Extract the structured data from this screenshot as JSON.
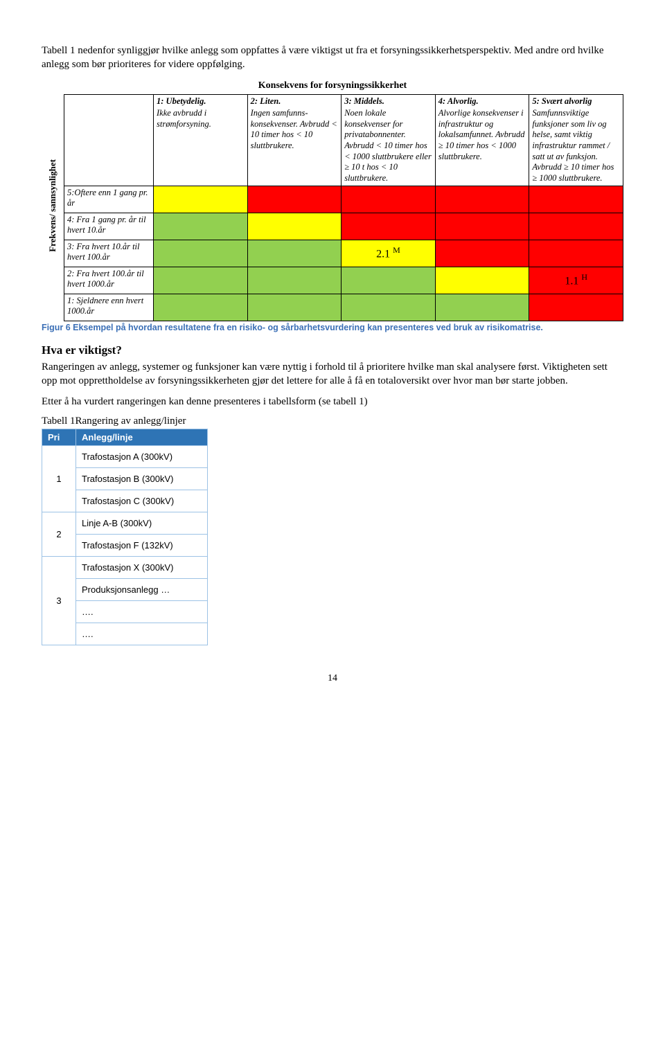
{
  "intro": "Tabell 1 nedenfor synliggjør hvilke anlegg som oppfattes å være viktigst ut fra et forsyningssikkerhetsperspektiv. Med andre ord hvilke anlegg som bør prioriteres for videre oppfølging.",
  "risk": {
    "title": "Konsekvens for forsyningssikkerhet",
    "y_axis_label": "Frekvens/ sannsynlighet",
    "columns": [
      {
        "title": "1: Ubetydelig.",
        "desc": "Ikke avbrudd i strømforsyning."
      },
      {
        "title": "2: Liten.",
        "desc": "Ingen samfunns-konsekvenser. Avbrudd < 10 timer hos < 10 sluttbrukere."
      },
      {
        "title": "3: Middels.",
        "desc": "Noen lokale konsekvenser for privatabonnenter. Avbrudd < 10 timer hos < 1000 sluttbrukere eller ≥ 10 t hos < 10 sluttbrukere."
      },
      {
        "title": "4: Alvorlig.",
        "desc": "Alvorlige konsekvenser i infrastruktur og lokalsamfunnet. Avbrudd ≥ 10 timer hos < 1000 sluttbrukere."
      },
      {
        "title": "5: Svært alvorlig",
        "desc": "Samfunnsviktige funksjoner som liv og helse, samt viktig infrastruktur rammet / satt ut av funksjon. Avbrudd ≥ 10 timer hos ≥ 1000 sluttbrukere."
      }
    ],
    "rows": [
      {
        "label": "5:Oftere enn 1 gang pr. år"
      },
      {
        "label": "4: Fra 1 gang pr. år til hvert 10.år"
      },
      {
        "label": "3: Fra hvert 10.år til hvert 100.år"
      },
      {
        "label": "2: Fra hvert 100.år til hvert 1000.år"
      },
      {
        "label": "1: Sjeldnere enn hvert 1000.år"
      }
    ],
    "colors": {
      "green": "#92d050",
      "yellow": "#ffff00",
      "red": "#ff0000"
    },
    "matrix_colors": [
      [
        "yellow",
        "red",
        "red",
        "red",
        "red"
      ],
      [
        "green",
        "yellow",
        "red",
        "red",
        "red"
      ],
      [
        "green",
        "green",
        "yellow",
        "red",
        "red"
      ],
      [
        "green",
        "green",
        "green",
        "yellow",
        "red"
      ],
      [
        "green",
        "green",
        "green",
        "green",
        "red"
      ]
    ],
    "annotations": {
      "2_2": {
        "text": "2.1",
        "sup": "M"
      },
      "3_4": {
        "text": "1.1",
        "sup": "H"
      }
    }
  },
  "fig_caption": "Figur 6 Eksempel på hvordan resultatene fra en risiko- og sårbarhetsvurdering kan presenteres ved bruk av risikomatrise.",
  "section_title": "Hva er viktigst?",
  "section_body_1": "Rangeringen av anlegg, systemer og funksjoner kan være nyttig i forhold til å prioritere hvilke man skal analysere først. Viktigheten sett opp mot opprettholdelse av forsyningssikkerheten gjør det lettere for alle å få en totaloversikt over hvor man bør starte jobben.",
  "section_body_2": "Etter å ha vurdert rangeringen kan denne presenteres i tabellsform (se tabell 1)",
  "pri_table": {
    "title": "Tabell 1Rangering av anlegg/linjer",
    "head": {
      "c0": "Pri",
      "c1": "Anlegg/linje"
    },
    "groups": [
      {
        "num": "1",
        "rows": [
          "Trafostasjon A (300kV)",
          "Trafostasjon B (300kV)",
          "Trafostasjon C  (300kV)"
        ]
      },
      {
        "num": "2",
        "rows": [
          "Linje A-B  (300kV)",
          "Trafostasjon F (132kV)"
        ]
      },
      {
        "num": "3",
        "rows": [
          "Trafostasjon X  (300kV)",
          "Produksjonsanlegg …",
          "….",
          "…."
        ]
      }
    ]
  },
  "page_number": "14"
}
